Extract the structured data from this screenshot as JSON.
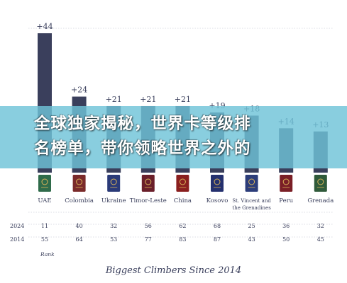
{
  "chart_data": {
    "type": "bar",
    "title": "Biggest Climbers Since 2014",
    "categories": [
      "UAE",
      "Colombia",
      "Ukraine",
      "Timor-Leste",
      "China",
      "Kosovo",
      "St. Vincent and the Grenadines",
      "Peru",
      "Grenada"
    ],
    "category_lines": [
      [
        "UAE"
      ],
      [
        "Colombia"
      ],
      [
        "Ukraine"
      ],
      [
        "Timor-Leste"
      ],
      [
        "China"
      ],
      [
        "Kosovo"
      ],
      [
        "St. Vincent and",
        "the Grenadines"
      ],
      [
        "Peru"
      ],
      [
        "Grenada"
      ]
    ],
    "values": [
      44,
      24,
      21,
      21,
      21,
      19,
      18,
      14,
      13
    ],
    "value_labels": [
      "+44",
      "+24",
      "+21",
      "+21",
      "+21",
      "+19",
      "+18",
      "+14",
      "+13"
    ],
    "ylim": [
      0,
      44
    ],
    "bar_color": "#3a3f5c",
    "table": {
      "rows": [
        {
          "label": "2024",
          "values": [
            "11",
            "40",
            "32",
            "56",
            "62",
            "68",
            "25",
            "36",
            "32"
          ]
        },
        {
          "label": "2014",
          "values": [
            "55",
            "64",
            "53",
            "77",
            "83",
            "87",
            "43",
            "50",
            "45"
          ]
        }
      ],
      "footnote": "Rank"
    },
    "passport_colors": [
      "#2f6b4a",
      "#7a2a2a",
      "#2a3a78",
      "#6a1f2a",
      "#8a1f1f",
      "#24306e",
      "#2c3d7a",
      "#7a1f26",
      "#2f5a3a"
    ]
  },
  "overlay": {
    "headline": "全球独家揭秘，世界卡等级排\n名榜单，带你领略世界之外的",
    "banner_color": "#6fc3d8"
  }
}
